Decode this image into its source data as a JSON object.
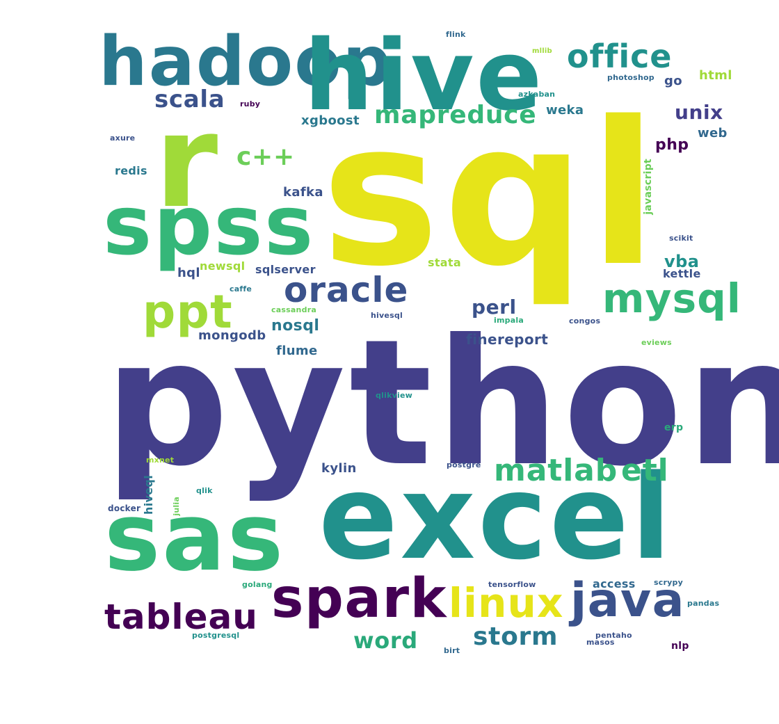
{
  "palette": {
    "dark_purple": "#440154",
    "indigo": "#433f8a",
    "slate_blue": "#3b528b",
    "steel": "#31688e",
    "teal_blue": "#2a788e",
    "teal": "#21918c",
    "sea_green": "#2aa97a",
    "green": "#35b779",
    "light_green": "#6cce59",
    "lime": "#a0da39",
    "yellow": "#e6e419"
  },
  "words": {
    "sql": "sql",
    "python": "python",
    "excel": "excel",
    "sas": "sas",
    "r": "r",
    "spss": "spss",
    "hadoop": "hadoop",
    "hive": "hive",
    "spark": "spark",
    "linux": "linux",
    "java": "java",
    "tableau": "tableau",
    "oracle": "oracle",
    "mysql": "mysql",
    "ppt": "ppt",
    "office": "office",
    "mapreduce": "mapreduce",
    "matlab": "matlab",
    "etl": "etl",
    "storm": "storm",
    "word": "word",
    "scala": "scala",
    "c_plus_plus": "c++",
    "unix": "unix",
    "perl": "perl",
    "nosql": "nosql",
    "vba": "vba",
    "finereport": "finereport",
    "mongodb": "mongodb",
    "php": "php",
    "weka": "weka",
    "xgboost": "xgboost",
    "kafka": "kafka",
    "flume": "flume",
    "kylin": "kylin",
    "html": "html",
    "go": "go",
    "web": "web",
    "sqlserver": "sqlserver",
    "newsql": "newsql",
    "hql": "hql",
    "stata": "stata",
    "kettle": "kettle",
    "access": "access",
    "redis": "redis",
    "hiveql": "hiveql",
    "javascript": "javascript",
    "flink": "flink",
    "mllib": "mllib",
    "photoshop": "photoshop",
    "azkaban": "azkaban",
    "ruby": "ruby",
    "axure": "axure",
    "scikit": "scikit",
    "caffe": "caffe",
    "cassandra": "cassandra",
    "hivesql": "hivesql",
    "impala": "impala",
    "congos": "congos",
    "eviews": "eviews",
    "qlikview": "qlikview",
    "erp": "erp",
    "mxnet": "mxnet",
    "postgre": "postgre",
    "qlik": "qlik",
    "docker": "docker",
    "julia": "julia",
    "golang": "golang",
    "tensorflow": "tensorflow",
    "scrypy": "scrypy",
    "pandas": "pandas",
    "postgresql": "postgresql",
    "pentaho": "pentaho",
    "masos": "masos",
    "birt": "birt",
    "nlp": "nlp"
  }
}
